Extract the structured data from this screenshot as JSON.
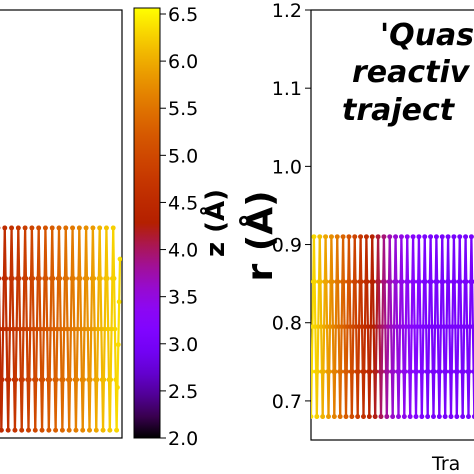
{
  "chart_data": [
    {
      "panel": "left",
      "type": "line",
      "colormap": "gnuplot",
      "colorbar": {
        "label": "z (Å)",
        "ticks": [
          "2.0",
          "2.5",
          "3.0",
          "3.5",
          "4.0",
          "4.5",
          "5.0",
          "5.5",
          "6.0",
          "6.5"
        ],
        "range": [
          2.0,
          6.5
        ]
      },
      "grid": false,
      "series": [
        {
          "x": [
            0,
            0.5,
            1,
            1.5,
            2,
            2.5,
            3,
            3.5,
            4,
            4.5,
            5,
            5.5,
            6,
            6.5,
            7,
            7.5,
            8,
            8.5,
            9,
            9.5,
            10,
            10.5,
            11,
            11.5,
            12,
            12.5,
            13,
            13.5,
            14,
            14.5,
            15,
            15.5,
            16,
            16.5,
            17,
            17.5,
            18
          ],
          "y": [
            0.92,
            0.66,
            0.92,
            0.66,
            0.92,
            0.66,
            0.92,
            0.66,
            0.92,
            0.66,
            0.92,
            0.66,
            0.92,
            0.66,
            0.92,
            0.66,
            0.92,
            0.66,
            0.92,
            0.66,
            0.92,
            0.66,
            0.92,
            0.66,
            0.92,
            0.66,
            0.92,
            0.66,
            0.92,
            0.66,
            0.92,
            0.66,
            0.92,
            0.66,
            0.92,
            0.66,
            0.88
          ],
          "z": [
            4.4,
            4.45,
            4.5,
            4.55,
            4.6,
            4.65,
            4.7,
            4.75,
            4.8,
            4.85,
            4.9,
            4.95,
            5.0,
            5.05,
            5.1,
            5.15,
            5.2,
            5.25,
            5.3,
            5.35,
            5.4,
            5.45,
            5.5,
            5.55,
            5.6,
            5.65,
            5.7,
            5.75,
            5.8,
            5.9,
            6.0,
            6.05,
            6.1,
            6.15,
            6.2,
            6.25,
            6.3
          ]
        }
      ]
    },
    {
      "panel": "right",
      "type": "line",
      "colormap": "gnuplot",
      "ylabel": "r (Å)",
      "xlabel": "Tra",
      "ylim": [
        0.65,
        1.2
      ],
      "yticks": [
        "0.7",
        "0.8",
        "0.9",
        "1.0",
        "1.1",
        "1.2"
      ],
      "annotation": [
        "'Quas",
        "reactiv",
        "traject"
      ],
      "grid": false,
      "series": [
        {
          "x": [
            0,
            0.5,
            1,
            1.5,
            2,
            2.5,
            3,
            3.5,
            4,
            4.5,
            5,
            5.5,
            6,
            6.5,
            7,
            7.5,
            8,
            8.5,
            9,
            9.5,
            10,
            10.5,
            11,
            11.5,
            12,
            12.5,
            13,
            13.5,
            14,
            14.5,
            15,
            15.5,
            16,
            16.5,
            17,
            17.5,
            18,
            18.5,
            19,
            19.5,
            20,
            20.5,
            21,
            21.5,
            22,
            22.5,
            23,
            23.5,
            24,
            24.5,
            25,
            25.5,
            26,
            26.5,
            27,
            27.5,
            28,
            28.5,
            29,
            29.5,
            30
          ],
          "y": [
            0.68,
            0.91,
            0.68,
            0.91,
            0.68,
            0.91,
            0.68,
            0.91,
            0.68,
            0.91,
            0.68,
            0.91,
            0.68,
            0.91,
            0.68,
            0.91,
            0.68,
            0.91,
            0.68,
            0.91,
            0.68,
            0.91,
            0.68,
            0.91,
            0.68,
            0.91,
            0.68,
            0.91,
            0.68,
            0.91,
            0.68,
            0.91,
            0.68,
            0.91,
            0.68,
            0.91,
            0.68,
            0.91,
            0.68,
            0.91,
            0.68,
            0.91,
            0.68,
            0.91,
            0.68,
            0.91,
            0.68,
            0.91,
            0.68,
            0.91,
            0.68,
            0.91,
            0.68,
            0.91,
            0.68,
            0.91,
            0.68,
            0.91,
            0.68,
            0.91,
            0.68
          ],
          "z": [
            6.3,
            6.25,
            6.2,
            6.1,
            6.0,
            5.9,
            5.8,
            5.7,
            5.6,
            5.5,
            5.4,
            5.3,
            5.2,
            5.1,
            5.0,
            4.9,
            4.8,
            4.7,
            4.6,
            4.5,
            4.4,
            4.3,
            4.2,
            4.1,
            4.0,
            3.9,
            3.8,
            3.7,
            3.6,
            3.55,
            3.5,
            3.45,
            3.4,
            3.35,
            3.3,
            3.25,
            3.2,
            3.15,
            3.1,
            3.05,
            3.0,
            3.0,
            3.0,
            3.0,
            3.0,
            3.0,
            3.0,
            3.0,
            3.0,
            3.0,
            3.0,
            3.0,
            3.0,
            3.0,
            3.0,
            3.0,
            3.0,
            3.0,
            3.0,
            3.0,
            3.0
          ]
        }
      ]
    }
  ]
}
